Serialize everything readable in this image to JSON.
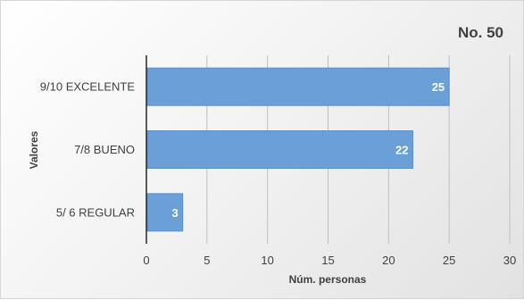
{
  "chart_data": {
    "type": "bar",
    "orientation": "horizontal",
    "title": "No. 50",
    "categories": [
      "9/10 EXCELENTE",
      "7/8 BUENO",
      "5/ 6 REGULAR"
    ],
    "values": [
      25,
      22,
      3
    ],
    "xlabel": "Núm. personas",
    "ylabel": "Valores",
    "xlim": [
      0,
      30
    ],
    "xticks": [
      "0",
      "5",
      "10",
      "15",
      "20",
      "25",
      "30"
    ],
    "data_labels": [
      "25",
      "22",
      "3"
    ],
    "grid": "vertical",
    "legend": "none",
    "bar_color": "#6a9fd8",
    "bar_edge_color": "#5b8fc9",
    "grid_color": "#bfbfbf",
    "axis_color": "#262626"
  }
}
